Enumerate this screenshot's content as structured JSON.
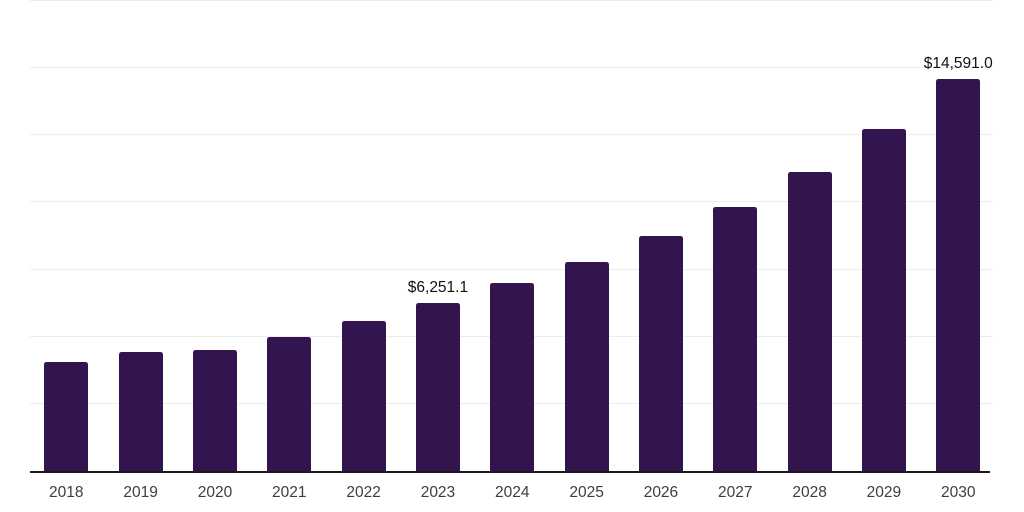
{
  "chart_data": {
    "type": "bar",
    "categories": [
      "2018",
      "2019",
      "2020",
      "2021",
      "2022",
      "2023",
      "2024",
      "2025",
      "2026",
      "2027",
      "2028",
      "2029",
      "2030"
    ],
    "values": [
      4050,
      4440,
      4510,
      4990,
      5580,
      6251.1,
      6990,
      7790,
      8740,
      9840,
      11140,
      12740,
      14591
    ],
    "value_labels": [
      "",
      "",
      "",
      "",
      "",
      "$6,251.1",
      "",
      "",
      "",
      "",
      "",
      "",
      "$14,591.0"
    ],
    "title": "",
    "xlabel": "",
    "ylabel": "",
    "ylim": [
      0,
      17500
    ],
    "gridline_step": 2500,
    "grid": true,
    "legend": false,
    "colors": {
      "bar": "#32154e",
      "gridline": "#ededed",
      "axis": "#1a1a1a",
      "tick_label": "#3d3d3d",
      "value_label": "#111111",
      "background": "#ffffff"
    }
  }
}
